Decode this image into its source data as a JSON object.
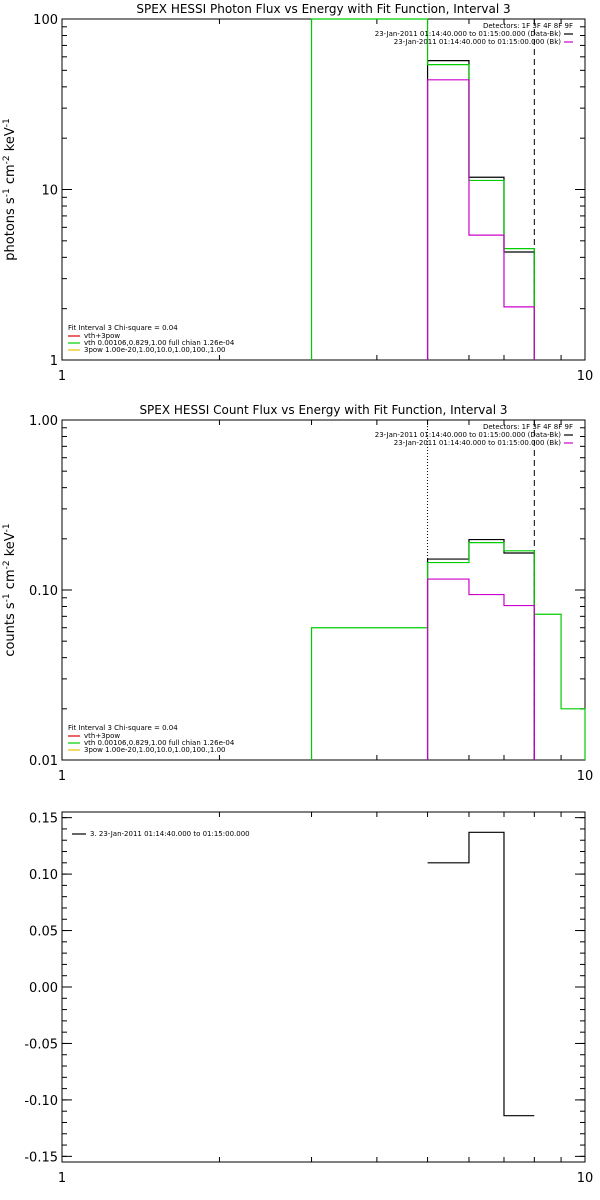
{
  "chart_data": [
    {
      "type": "step",
      "title": "SPEX HESSI Photon Flux vs Energy with Fit Function, Interval 3",
      "xlabel": "",
      "ylabel_parts": {
        "base": "photons s",
        "exp1": "-1",
        "mid": " cm",
        "exp2": "-2",
        "end": " keV",
        "exp3": "-1"
      },
      "x_scale": "log",
      "xlim": [
        1,
        10
      ],
      "y_scale": "log",
      "ylim": [
        1,
        100
      ],
      "x_ticks": [
        1,
        10
      ],
      "x_tick_labels": [
        "1",
        "10"
      ],
      "y_ticks": [
        1,
        10,
        100
      ],
      "y_tick_labels": [
        "1",
        "10",
        "100"
      ],
      "legend_top": {
        "header": "Detectors: 1F 3F 4F 8F 9F",
        "entries": [
          {
            "text": "23-Jan-2011 01:14:40.000 to 01:15:00.000 (Data-Bk)",
            "color": "#000000"
          },
          {
            "text": "23-Jan-2011 01:14:40.000 to 01:15:00.000 (Bk)",
            "color": "#cc00cc"
          }
        ]
      },
      "legend_bottom": {
        "header": "Fit Interval 3   Chi-square = 0.04",
        "entries": [
          {
            "text": "vth+3pow",
            "color": "#dd0000"
          },
          {
            "text": "vth 0.00106,0.829,1.00  full chian 1.26e-04",
            "color": "#00cc00"
          },
          {
            "text": "3pow 1.00e-20,1.00,10.0,1.00,100.,1.00",
            "color": "#e8c000"
          }
        ]
      },
      "series": [
        {
          "color": "#000000",
          "edges": [
            5,
            6,
            7,
            8
          ],
          "values": [
            57,
            11.8,
            4.3
          ]
        },
        {
          "color": "#00cc00",
          "edges": [
            3,
            5,
            6,
            7,
            8
          ],
          "values": [
            100,
            54,
            11.3,
            4.5
          ]
        },
        {
          "color": "#cc00cc",
          "edges": [
            5,
            6,
            7,
            8
          ],
          "values": [
            44,
            5.4,
            2.05
          ]
        }
      ],
      "vlines": [
        {
          "x": 5,
          "style": "dotted"
        },
        {
          "x": 8,
          "style": "dashed"
        }
      ]
    },
    {
      "type": "step",
      "title": "SPEX HESSI Count Flux vs Energy with Fit Function, Interval 3",
      "xlabel": "",
      "ylabel_parts": {
        "base": "counts s",
        "exp1": "-1",
        "mid": " cm",
        "exp2": "-2",
        "end": " keV",
        "exp3": "-1"
      },
      "x_scale": "log",
      "xlim": [
        1,
        10
      ],
      "y_scale": "log",
      "ylim": [
        0.01,
        1
      ],
      "x_ticks": [
        1,
        10
      ],
      "x_tick_labels": [
        "1",
        "10"
      ],
      "y_ticks": [
        0.01,
        0.1,
        1
      ],
      "y_tick_labels": [
        "0.01",
        "0.10",
        "1.00"
      ],
      "legend_top": {
        "header": "Detectors: 1F 3F 4F 8F 9F",
        "entries": [
          {
            "text": "23-Jan-2011 01:14:40.000 to 01:15:00.000 (Data-Bk)",
            "color": "#000000"
          },
          {
            "text": "23-Jan-2011 01:14:40.000 to 01:15:00.000 (Bk)",
            "color": "#cc00cc"
          }
        ]
      },
      "legend_bottom": {
        "header": "Fit Interval 3   Chi-square = 0.04",
        "entries": [
          {
            "text": "vth+3pow",
            "color": "#dd0000"
          },
          {
            "text": "vth 0.00106,0.829,1.00  full chian 1.26e-04",
            "color": "#00cc00"
          },
          {
            "text": "3pow 1.00e-20,1.00,10.0,1.00,100.,1.00",
            "color": "#e8c000"
          }
        ]
      },
      "series": [
        {
          "color": "#000000",
          "edges": [
            5,
            6,
            7,
            8
          ],
          "values": [
            0.152,
            0.198,
            0.165
          ]
        },
        {
          "color": "#00cc00",
          "edges": [
            3,
            5,
            6,
            7,
            8,
            9,
            10
          ],
          "values": [
            0.06,
            0.145,
            0.19,
            0.17,
            0.072,
            0.02
          ]
        },
        {
          "color": "#cc00cc",
          "edges": [
            5,
            6,
            7,
            8
          ],
          "values": [
            0.116,
            0.094,
            0.081
          ]
        }
      ],
      "vlines": [
        {
          "x": 5,
          "style": "dotted"
        },
        {
          "x": 8,
          "style": "dashed"
        }
      ]
    },
    {
      "type": "step",
      "title": "",
      "xlabel": "",
      "ylabel_parts": null,
      "x_scale": "log",
      "xlim": [
        1,
        10
      ],
      "y_scale": "linear",
      "ylim": [
        -0.155,
        0.155
      ],
      "x_ticks": [
        1,
        10
      ],
      "x_tick_labels": [
        "1",
        "10"
      ],
      "y_ticks": [
        -0.15,
        -0.1,
        -0.05,
        0.0,
        0.05,
        0.1,
        0.15
      ],
      "y_tick_labels": [
        "-0.15",
        "-0.10",
        "-0.05",
        "0.00",
        "0.05",
        "0.10",
        "0.15"
      ],
      "legend_top": null,
      "legend_resid": {
        "entries": [
          {
            "text": "3. 23-Jan-2011 01:14:40.000 to 01:15:00.000",
            "color": "#000000"
          }
        ]
      },
      "legend_bottom": null,
      "series": [
        {
          "color": "#000000",
          "edges": [
            5,
            6,
            7,
            8
          ],
          "values": [
            0.11,
            0.137,
            -0.114
          ]
        }
      ],
      "vlines": []
    }
  ]
}
